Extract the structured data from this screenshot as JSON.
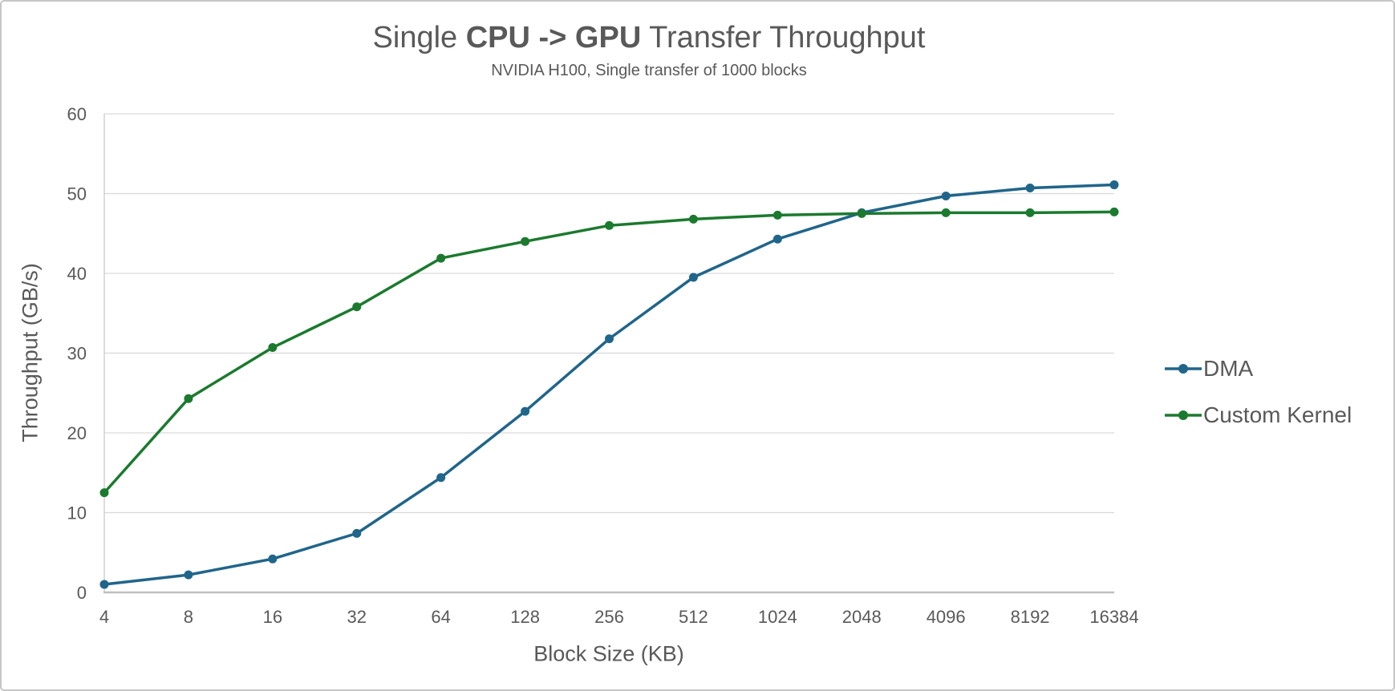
{
  "title": {
    "prefix": "Single ",
    "bold": "CPU -> GPU",
    "suffix": " Transfer Throughput"
  },
  "chart_data": {
    "type": "line",
    "title": "Single CPU -> GPU Transfer Throughput",
    "subtitle": "NVIDIA H100, Single transfer of 1000 blocks",
    "categories": [
      4,
      8,
      16,
      32,
      64,
      128,
      256,
      512,
      1024,
      2048,
      4096,
      8192,
      16384
    ],
    "series": [
      {
        "name": "DMA",
        "color": "#20658A",
        "values": [
          1.0,
          2.2,
          4.2,
          7.4,
          14.4,
          22.7,
          31.8,
          39.5,
          44.3,
          47.6,
          49.7,
          50.7,
          51.1
        ]
      },
      {
        "name": "Custom Kernel",
        "color": "#1B7A2E",
        "values": [
          12.5,
          24.3,
          30.7,
          35.8,
          41.9,
          44.0,
          46.0,
          46.8,
          47.3,
          47.5,
          47.6,
          47.6,
          47.7
        ]
      }
    ],
    "xlabel": "Block Size (KB)",
    "ylabel": "Throughput (GB/s)",
    "ylim": [
      0,
      60
    ],
    "ytick_step": 10,
    "grid": true,
    "legend_position": "right",
    "colors": {
      "text": "#595959",
      "gridline": "#D9D9D9",
      "axis_line": "#BFBFBF",
      "y_axis_line": "#D0D0D0"
    }
  }
}
